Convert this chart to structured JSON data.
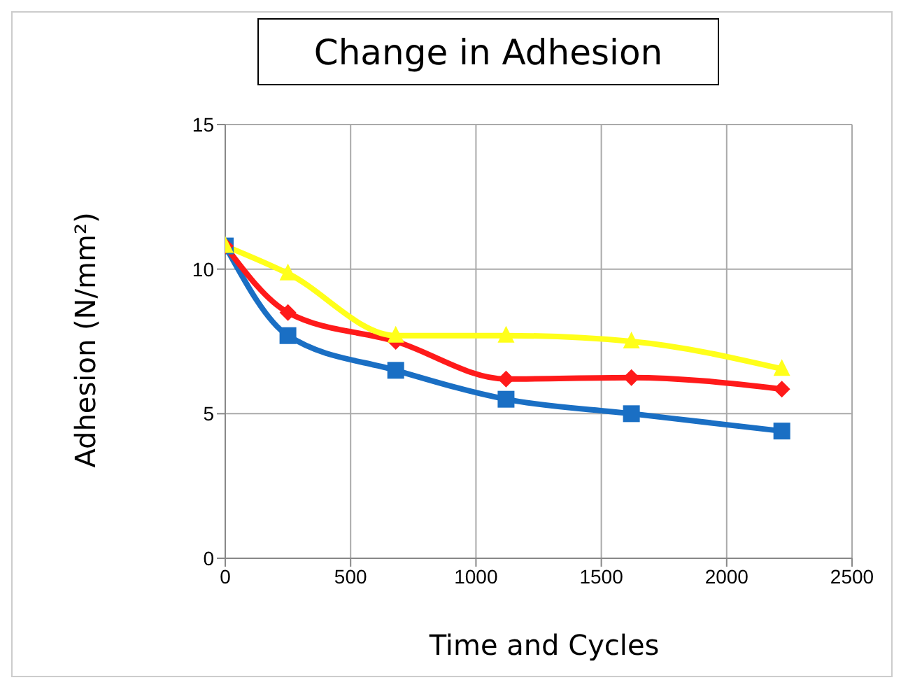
{
  "chart_data": {
    "type": "line",
    "title": "Change in Adhesion",
    "xlabel": "Time and Cycles",
    "ylabel": "Adhesion (N/mm²)",
    "xlim": [
      0,
      2500
    ],
    "xticks": [
      0,
      500,
      1000,
      1500,
      2000,
      2500
    ],
    "ylim": [
      0,
      15
    ],
    "yticks": [
      0,
      5,
      10,
      15
    ],
    "grid": true,
    "x": [
      0,
      250,
      680,
      1120,
      1620,
      2220
    ],
    "series": [
      {
        "color": "#1a6fc4",
        "marker": "square",
        "values": [
          10.8,
          7.7,
          6.5,
          5.5,
          5.0,
          4.4
        ]
      },
      {
        "color": "#ff1a1a",
        "marker": "diamond",
        "values": [
          10.8,
          8.5,
          7.5,
          6.2,
          6.25,
          5.85
        ]
      },
      {
        "color": "#ffff1a",
        "marker": "triangle",
        "values": [
          10.8,
          9.85,
          7.7,
          7.7,
          7.5,
          6.55
        ]
      }
    ]
  }
}
